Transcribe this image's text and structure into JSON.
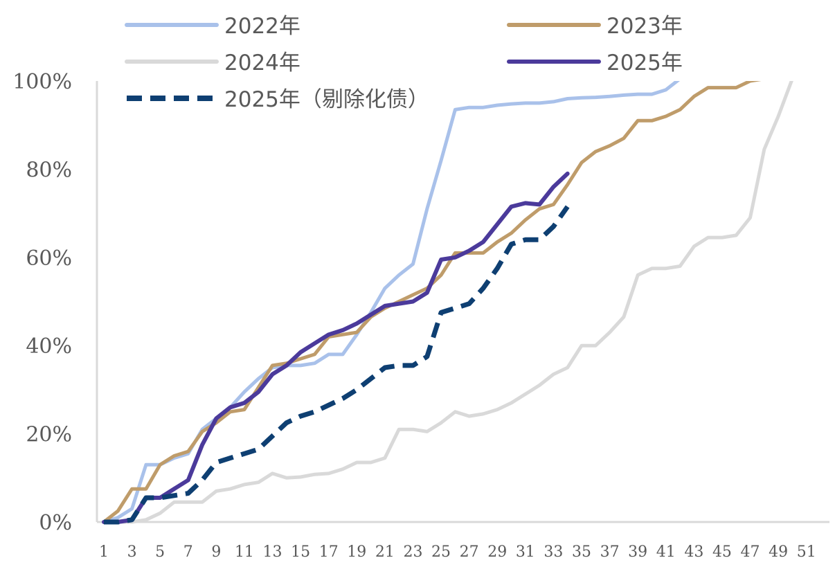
{
  "chart_data": {
    "type": "line",
    "title": "",
    "xlabel": "",
    "ylabel": "",
    "xlim": [
      1,
      52
    ],
    "ylim": [
      0,
      100
    ],
    "y_ticks": [
      "0%",
      "20%",
      "40%",
      "60%",
      "80%",
      "100%"
    ],
    "x_ticks": [
      "1",
      "3",
      "5",
      "7",
      "9",
      "11",
      "13",
      "15",
      "17",
      "19",
      "21",
      "23",
      "25",
      "27",
      "29",
      "31",
      "33",
      "35",
      "37",
      "39",
      "41",
      "43",
      "45",
      "47",
      "49",
      "51"
    ],
    "grid": false,
    "legend_position": "top",
    "series": [
      {
        "name": "2022年",
        "color": "#a9c1ea",
        "dash": "solid",
        "x": [
          1,
          2,
          3,
          4,
          5,
          6,
          7,
          8,
          9,
          10,
          11,
          12,
          13,
          14,
          15,
          16,
          17,
          18,
          19,
          20,
          21,
          22,
          23,
          24,
          25,
          26,
          27,
          28,
          29,
          30,
          31,
          32,
          33,
          34,
          35,
          36,
          37,
          38,
          39,
          40,
          41,
          42
        ],
        "y": [
          0,
          1,
          3,
          13,
          13,
          14.5,
          15.5,
          21,
          23.5,
          26,
          29.5,
          32.5,
          35,
          35.5,
          35.5,
          36,
          38,
          38,
          42.5,
          47.5,
          53,
          56,
          58.5,
          71,
          82,
          93.5,
          94,
          94,
          94.5,
          94.8,
          95,
          95,
          95.3,
          96,
          96.2,
          96.3,
          96.5,
          96.8,
          97,
          97,
          98,
          100.5
        ]
      },
      {
        "name": "2023年",
        "color": "#bf9c6a",
        "dash": "solid",
        "x": [
          1,
          2,
          3,
          4,
          5,
          6,
          7,
          8,
          9,
          10,
          11,
          12,
          13,
          14,
          15,
          16,
          17,
          18,
          19,
          20,
          21,
          22,
          23,
          24,
          25,
          26,
          27,
          28,
          29,
          30,
          31,
          32,
          33,
          34,
          35,
          36,
          37,
          38,
          39,
          40,
          41,
          42,
          43,
          44,
          45,
          46,
          47,
          48
        ],
        "y": [
          0,
          2.5,
          7.5,
          7.5,
          13,
          15,
          16,
          20.5,
          22.5,
          25,
          25.5,
          30.5,
          35.5,
          36,
          37,
          38,
          42,
          42.5,
          43,
          46.5,
          48.5,
          50,
          51.5,
          53,
          56,
          61,
          61,
          61,
          63.5,
          65.5,
          68.5,
          71,
          72,
          76.5,
          81.5,
          84,
          85.3,
          87,
          91,
          91,
          92,
          93.5,
          96.5,
          98.5,
          98.5,
          98.5,
          100,
          100.5
        ]
      },
      {
        "name": "2024年",
        "color": "#d9d9d9",
        "dash": "solid",
        "x": [
          1,
          2,
          3,
          4,
          5,
          6,
          7,
          8,
          9,
          10,
          11,
          12,
          13,
          14,
          15,
          16,
          17,
          18,
          19,
          20,
          21,
          22,
          23,
          24,
          25,
          26,
          27,
          28,
          29,
          30,
          31,
          32,
          33,
          34,
          35,
          36,
          37,
          38,
          39,
          40,
          41,
          42,
          43,
          44,
          45,
          46,
          47,
          48,
          49,
          50
        ],
        "y": [
          0,
          0,
          0,
          0.5,
          2,
          4.5,
          4.5,
          4.5,
          7,
          7.5,
          8.5,
          9,
          11,
          10,
          10.2,
          10.8,
          11,
          12,
          13.5,
          13.5,
          14.5,
          21,
          21,
          20.5,
          22.5,
          25,
          24,
          24.5,
          25.5,
          27,
          29,
          31,
          33.5,
          35,
          40,
          40,
          43,
          46.5,
          56,
          57.5,
          57.5,
          58,
          62.5,
          64.5,
          64.5,
          65,
          69,
          84.5,
          92,
          100.5
        ]
      },
      {
        "name": "2025年",
        "color": "#4b3a9b",
        "dash": "solid",
        "x": [
          1,
          2,
          3,
          4,
          5,
          6,
          7,
          8,
          9,
          10,
          11,
          12,
          13,
          14,
          15,
          16,
          17,
          18,
          19,
          20,
          21,
          22,
          23,
          24,
          25,
          26,
          27,
          28,
          29,
          30,
          31,
          32,
          33,
          34
        ],
        "y": [
          0,
          0,
          0.5,
          5.5,
          5.5,
          7.5,
          9.5,
          17.5,
          23.5,
          26,
          27,
          29.5,
          33.5,
          35.5,
          38.5,
          40.5,
          42.5,
          43.5,
          45,
          47,
          49,
          49.5,
          50,
          52,
          59.5,
          60,
          61.5,
          63.5,
          67.5,
          71.5,
          72.3,
          72,
          76,
          79
        ]
      },
      {
        "name": "2025年（剔除化债）",
        "color": "#0e3f72",
        "dash": "dashed",
        "x": [
          1,
          2,
          3,
          4,
          5,
          6,
          7,
          8,
          9,
          10,
          11,
          12,
          13,
          14,
          15,
          16,
          17,
          18,
          19,
          20,
          21,
          22,
          23,
          24,
          25,
          26,
          27,
          28,
          29,
          30,
          31,
          32,
          33,
          34
        ],
        "y": [
          0,
          0,
          0.5,
          5.5,
          5.5,
          6,
          6.5,
          9.5,
          13.5,
          14.5,
          15.5,
          16.5,
          19.5,
          22.5,
          24,
          25,
          26.5,
          28,
          30,
          32.5,
          35,
          35.5,
          35.5,
          37.5,
          47.5,
          48.5,
          49.5,
          53,
          57.5,
          63,
          64,
          64,
          67,
          71.5
        ]
      }
    ]
  }
}
